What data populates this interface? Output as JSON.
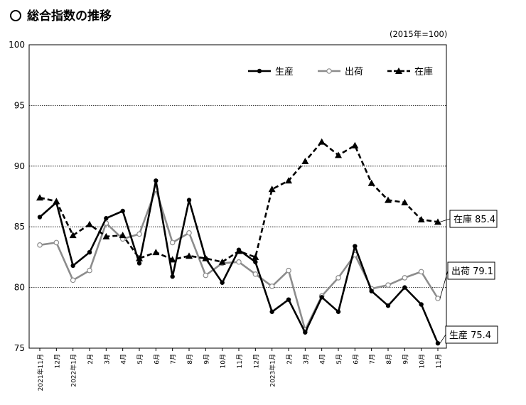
{
  "page": {
    "title": "総合指数の推移",
    "unit_note": "(2015年=100)"
  },
  "chart_data": {
    "type": "line",
    "title": "総合指数の推移",
    "xlabel": "",
    "ylabel": "",
    "ylim": [
      75,
      100
    ],
    "yticks": [
      75,
      80,
      85,
      90,
      95,
      100
    ],
    "grid": "horizontal dashed",
    "legend_position": "top-right",
    "categories": [
      "2021年11月",
      "12月",
      "2022年1月",
      "2月",
      "3月",
      "4月",
      "5月",
      "6月",
      "7月",
      "8月",
      "9月",
      "10月",
      "11月",
      "12月",
      "2023年1月",
      "2月",
      "3月",
      "4月",
      "5月",
      "6月",
      "7月",
      "8月",
      "9月",
      "10月",
      "11月"
    ],
    "series": [
      {
        "name": "生産",
        "style": "solid-black-filled-circle",
        "color": "#000000",
        "values": [
          85.8,
          87.0,
          81.8,
          82.9,
          85.7,
          86.3,
          82.0,
          88.8,
          80.9,
          87.2,
          82.4,
          80.4,
          83.1,
          82.1,
          78.0,
          79.0,
          76.3,
          79.2,
          78.0,
          83.4,
          79.7,
          78.5,
          80.0,
          78.6,
          75.4
        ]
      },
      {
        "name": "出荷",
        "style": "solid-gray-open-circle",
        "color": "#8c8c8c",
        "values": [
          83.5,
          83.7,
          80.6,
          81.4,
          85.3,
          84.0,
          84.4,
          88.1,
          83.7,
          84.5,
          81.0,
          82.0,
          82.1,
          81.1,
          80.1,
          81.4,
          76.5,
          79.3,
          80.8,
          82.7,
          79.9,
          80.2,
          80.8,
          81.3,
          79.1
        ]
      },
      {
        "name": "在庫",
        "style": "dashed-black-triangle",
        "color": "#000000",
        "values": [
          87.4,
          87.1,
          84.3,
          85.2,
          84.2,
          84.3,
          82.4,
          82.9,
          82.3,
          82.6,
          82.4,
          82.1,
          83.0,
          82.5,
          88.1,
          88.8,
          90.4,
          92.0,
          90.9,
          91.7,
          88.6,
          87.2,
          87.0,
          85.6,
          85.4
        ]
      }
    ],
    "end_labels": [
      {
        "series": "在庫",
        "text": "在庫 85.4"
      },
      {
        "series": "出荷",
        "text": "出荷 79.1"
      },
      {
        "series": "生産",
        "text": "生産 75.4"
      }
    ]
  }
}
